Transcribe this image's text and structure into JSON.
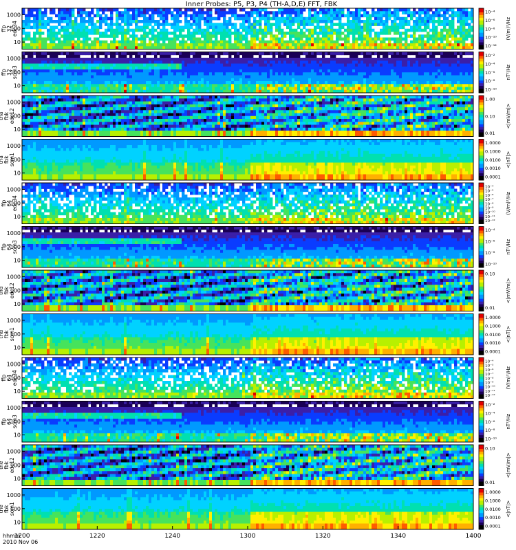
{
  "title": "Inner Probes: P5, P3, P4 (TH-A,D,E) FFT, FBK",
  "colors": {
    "colormap": [
      "#000000",
      "#1a0055",
      "#3b1fa8",
      "#0a3cff",
      "#0099ff",
      "#00d2ff",
      "#00e0b0",
      "#46e35c",
      "#b8f000",
      "#fff000",
      "#ffb000",
      "#ff5a00",
      "#e00000"
    ]
  },
  "chart_data": {
    "type": "heatmap",
    "xaxis": {
      "label_line1": "hhmm",
      "label_line2": "2010 Nov 06",
      "ticks": [
        "1200",
        "1220",
        "1240",
        "1300",
        "1320",
        "1340",
        "1400"
      ],
      "range_minutes": [
        0,
        120
      ]
    },
    "panels": [
      {
        "ylabel": [
          "tha",
          "ffp",
          "32",
          "edc34"
        ],
        "yticks": [
          "10",
          "100",
          "1000"
        ],
        "ylog": true,
        "cb_label": "(V/m)²/Hz",
        "cb_ticks": [
          "10⁻⁴",
          "10⁻⁶",
          "10⁻⁸",
          "10⁻¹⁰",
          "10⁻¹²"
        ],
        "kind": "ffp_edc",
        "seed": 11
      },
      {
        "ylabel": [
          "tha",
          "ffp",
          "32",
          "scm3"
        ],
        "yticks": [
          "10",
          "100",
          "1000"
        ],
        "ylog": true,
        "cb_label": "nT²/Hz",
        "cb_ticks": [
          "10⁻²",
          "10⁻⁴",
          "10⁻⁶",
          "10⁻⁸",
          "10⁻¹⁰"
        ],
        "kind": "ffp_scm",
        "seed": 23
      },
      {
        "ylabel": [
          "tha",
          "fbk",
          "edc12"
        ],
        "yticks": [
          "10",
          "100",
          "1000"
        ],
        "ylog": true,
        "cb_label": "<|mV/m|>",
        "cb_ticks": [
          "1.00",
          "0.10",
          "0.01"
        ],
        "kind": "fbk_edc",
        "seed": 37
      },
      {
        "ylabel": [
          "tha",
          "fbk",
          "scm1"
        ],
        "yticks": [
          "10",
          "100",
          "1000"
        ],
        "ylog": true,
        "cb_label": "<|nT|>",
        "cb_ticks": [
          "1.0000",
          "0.1000",
          "0.0100",
          "0.0010",
          "0.0001"
        ],
        "kind": "fbk_scm",
        "seed": 41
      },
      {
        "ylabel": [
          "thd",
          "ffp",
          "64",
          "edc34"
        ],
        "yticks": [
          "10",
          "100",
          "1000"
        ],
        "ylog": true,
        "cb_label": "(V/m)²/Hz",
        "cb_ticks": [
          "10⁻⁴",
          "10⁻⁵",
          "10⁻⁶",
          "10⁻⁷",
          "10⁻⁸",
          "10⁻⁹",
          "10⁻¹⁰",
          "10⁻¹¹",
          "10⁻¹²"
        ],
        "kind": "ffp_edc",
        "seed": 53
      },
      {
        "ylabel": [
          "thd",
          "ffp",
          "64",
          "scm3"
        ],
        "yticks": [
          "10",
          "100",
          "1000"
        ],
        "ylog": true,
        "cb_label": "nT²/Hz",
        "cb_ticks": [
          "10⁻⁴",
          "10⁻⁶",
          "10⁻⁸",
          "10⁻¹⁰"
        ],
        "kind": "ffp_scm",
        "seed": 67
      },
      {
        "ylabel": [
          "thd",
          "fbk",
          "edc12"
        ],
        "yticks": [
          "10",
          "100",
          "1000"
        ],
        "ylog": true,
        "cb_label": "<|mV/m|>",
        "cb_ticks": [
          "0.10",
          "0.01"
        ],
        "kind": "fbk_edc",
        "seed": 71
      },
      {
        "ylabel": [
          "thd",
          "fbk",
          "scm1"
        ],
        "yticks": [
          "10",
          "100",
          "1000"
        ],
        "ylog": true,
        "cb_label": "<|nT|>",
        "cb_ticks": [
          "1.0000",
          "0.1000",
          "0.0100",
          "0.0010",
          "0.0001"
        ],
        "kind": "fbk_scm",
        "seed": 83
      },
      {
        "ylabel": [
          "the",
          "ffp",
          "64",
          "edc34"
        ],
        "yticks": [
          "10",
          "100",
          "1000"
        ],
        "ylog": true,
        "cb_label": "(V/m)²/Hz",
        "cb_ticks": [
          "10⁻⁴",
          "10⁻⁵",
          "10⁻⁶",
          "10⁻⁷",
          "10⁻⁸",
          "10⁻⁹",
          "10⁻¹⁰",
          "10⁻¹¹",
          "10⁻¹²"
        ],
        "kind": "ffp_edc",
        "seed": 97
      },
      {
        "ylabel": [
          "the",
          "ffp",
          "64",
          "scm3"
        ],
        "yticks": [
          "10",
          "100",
          "1000"
        ],
        "ylog": true,
        "cb_label": "nT²/Hz",
        "cb_ticks": [
          "10⁻²",
          "10⁻⁴",
          "10⁻⁶",
          "10⁻⁸",
          "10⁻¹⁰"
        ],
        "kind": "ffp_scm",
        "seed": 101
      },
      {
        "ylabel": [
          "the",
          "fbk",
          "edc12"
        ],
        "yticks": [
          "10",
          "100",
          "1000"
        ],
        "ylog": true,
        "cb_label": "<|mV/m|>",
        "cb_ticks": [
          "0.10",
          "0.01"
        ],
        "kind": "fbk_edc",
        "seed": 113
      },
      {
        "ylabel": [
          "the",
          "fbk",
          "scm1"
        ],
        "yticks": [
          "10",
          "100",
          "1000"
        ],
        "ylog": true,
        "cb_label": "<|nT|>",
        "cb_ticks": [
          "1.0000",
          "0.1000",
          "0.0100",
          "0.0010",
          "0.0001"
        ],
        "kind": "fbk_scm",
        "seed": 127
      }
    ]
  }
}
